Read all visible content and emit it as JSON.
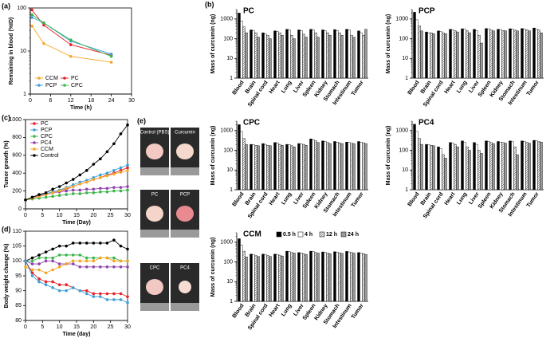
{
  "chart_data": [
    {
      "type": "line",
      "panel_label": "(a)",
      "xlabel": "Time (h)",
      "ylabel": "Remaining in blood (%ID)",
      "log_y": true,
      "x": [
        0.5,
        4,
        12,
        24
      ],
      "xlim": [
        0,
        30
      ],
      "xticks": [
        0,
        6,
        12,
        18,
        24,
        30
      ],
      "ylim": [
        1,
        100
      ],
      "yticks": [
        1,
        10,
        100
      ],
      "legend": "lower left",
      "series": [
        {
          "name": "CCM",
          "color": "#f5a623",
          "values": [
            38,
            15,
            7.5,
            5.5
          ]
        },
        {
          "name": "PC",
          "color": "#e8202a",
          "values": [
            90,
            40,
            14,
            8
          ]
        },
        {
          "name": "PCP",
          "color": "#3aa0d8",
          "values": [
            60,
            45,
            17,
            8.5
          ]
        },
        {
          "name": "CPC",
          "color": "#3cb54a",
          "values": [
            70,
            45,
            18,
            7.5
          ]
        }
      ]
    },
    {
      "type": "bar",
      "panel_label": "(b)",
      "title": "PC",
      "ylabel": "Mass of curcumin (ng)",
      "log_y": true,
      "ylim": [
        1,
        3000
      ],
      "yticks": [
        1,
        10,
        100,
        1000
      ],
      "categories": [
        "Blood",
        "Brain",
        "Spinal cord",
        "Heart",
        "Lung",
        "Liver",
        "Spleen",
        "Kidney",
        "Stomach",
        "Intestinum",
        "Tumor"
      ],
      "series": [
        {
          "color": "#000000",
          "values": [
            2000,
            280,
            200,
            250,
            300,
            280,
            300,
            280,
            290,
            300,
            250
          ]
        },
        {
          "color": "#ffffff",
          "values": [
            800,
            250,
            170,
            230,
            280,
            260,
            280,
            250,
            260,
            280,
            200
          ]
        },
        {
          "color": "#ffffff",
          "hatch": true,
          "values": [
            400,
            200,
            150,
            200,
            150,
            170,
            200,
            200,
            200,
            150,
            150
          ]
        },
        {
          "color": "#999999",
          "values": [
            200,
            120,
            100,
            150,
            100,
            120,
            120,
            150,
            150,
            120,
            300
          ]
        }
      ]
    },
    {
      "type": "bar",
      "title": "PCP",
      "ylabel": "Mass of curcumin (ng)",
      "log_y": true,
      "ylim": [
        1,
        3000
      ],
      "yticks": [
        1,
        10,
        100,
        1000
      ],
      "categories": [
        "Blood",
        "Brain",
        "Spinal cord",
        "Heart",
        "Lung",
        "Liver",
        "Spleen",
        "Kidney",
        "Stomach",
        "Intestinum",
        "Tumor"
      ],
      "series": [
        {
          "color": "#000000",
          "values": [
            2200,
            220,
            250,
            300,
            320,
            300,
            330,
            300,
            320,
            330,
            350
          ]
        },
        {
          "color": "#ffffff",
          "values": [
            900,
            200,
            230,
            280,
            300,
            250,
            320,
            290,
            300,
            300,
            300
          ]
        },
        {
          "color": "#ffffff",
          "hatch": true,
          "values": [
            450,
            200,
            200,
            250,
            250,
            150,
            280,
            260,
            270,
            280,
            280
          ]
        },
        {
          "color": "#999999",
          "values": [
            250,
            180,
            180,
            220,
            200,
            60,
            250,
            250,
            250,
            250,
            200
          ]
        }
      ]
    },
    {
      "type": "bar",
      "title": "CPC",
      "ylabel": "Mass of curcumin (ng)",
      "log_y": true,
      "ylim": [
        1,
        3000
      ],
      "yticks": [
        1,
        10,
        100,
        1000
      ],
      "categories": [
        "Blood",
        "Brain",
        "Spinal cord",
        "Heart",
        "Lung",
        "Liver",
        "Spleen",
        "Kidney",
        "Stomach",
        "Intestinum",
        "Tumor"
      ],
      "series": [
        {
          "color": "#000000",
          "values": [
            2000,
            200,
            220,
            250,
            200,
            220,
            380,
            300,
            280,
            260,
            280
          ]
        },
        {
          "color": "#ffffff",
          "values": [
            900,
            190,
            200,
            230,
            190,
            210,
            350,
            280,
            260,
            250,
            260
          ]
        },
        {
          "color": "#ffffff",
          "hatch": true,
          "values": [
            400,
            180,
            180,
            200,
            170,
            200,
            300,
            250,
            240,
            230,
            240
          ]
        },
        {
          "color": "#999999",
          "values": [
            200,
            170,
            170,
            180,
            150,
            180,
            250,
            220,
            220,
            220,
            220
          ]
        }
      ]
    },
    {
      "type": "bar",
      "title": "PC4",
      "ylabel": "Mass of curcumin (ng)",
      "log_y": true,
      "ylim": [
        1,
        3000
      ],
      "yticks": [
        1,
        10,
        100,
        1000
      ],
      "categories": [
        "Blood",
        "Brain",
        "Spinal cord",
        "Heart",
        "Lung",
        "Liver",
        "Spleen",
        "Kidney",
        "Stomach",
        "Intestinum",
        "Tumor"
      ],
      "series": [
        {
          "color": "#000000",
          "values": [
            2100,
            200,
            150,
            250,
            300,
            250,
            300,
            280,
            300,
            300,
            320
          ]
        },
        {
          "color": "#ffffff",
          "values": [
            900,
            190,
            120,
            230,
            250,
            200,
            280,
            260,
            270,
            280,
            300
          ]
        },
        {
          "color": "#ffffff",
          "hatch": true,
          "values": [
            400,
            180,
            60,
            200,
            150,
            100,
            250,
            250,
            150,
            250,
            280
          ]
        },
        {
          "color": "#999999",
          "values": [
            200,
            170,
            40,
            150,
            100,
            70,
            220,
            230,
            60,
            230,
            260
          ]
        }
      ]
    },
    {
      "type": "bar",
      "title": "CCM",
      "ylabel": "Mass of curcumin (ng)",
      "log_y": true,
      "ylim": [
        1,
        3000
      ],
      "yticks": [
        1,
        10,
        100,
        1000
      ],
      "legend": "top right",
      "categories": [
        "Blood",
        "Brain",
        "Spinal cord",
        "Heart",
        "Lung",
        "Liver",
        "Spleen",
        "Kidney",
        "Stomach",
        "Intestinum",
        "Tumor"
      ],
      "series": [
        {
          "name": "0.5 h",
          "color": "#000000",
          "values": [
            1500,
            250,
            250,
            250,
            350,
            300,
            350,
            320,
            330,
            340,
            300
          ]
        },
        {
          "name": "4 h",
          "color": "#ffffff",
          "values": [
            700,
            230,
            230,
            240,
            330,
            280,
            330,
            300,
            310,
            320,
            280
          ]
        },
        {
          "name": "12 h",
          "color": "#ffffff",
          "hatch": true,
          "values": [
            350,
            210,
            210,
            220,
            300,
            260,
            300,
            280,
            290,
            300,
            260
          ]
        },
        {
          "name": "24 h",
          "color": "#999999",
          "values": [
            180,
            190,
            190,
            200,
            280,
            240,
            280,
            260,
            270,
            280,
            240
          ]
        }
      ]
    },
    {
      "type": "line",
      "panel_label": "(c)",
      "xlabel": "Time (Day)",
      "ylabel": "Tumor growth (%)",
      "x": [
        0,
        2,
        4,
        6,
        8,
        10,
        12,
        14,
        16,
        18,
        20,
        22,
        24,
        26,
        28,
        30
      ],
      "xlim": [
        0,
        30
      ],
      "xticks": [
        0,
        5,
        10,
        15,
        20,
        25,
        30
      ],
      "ylim": [
        0,
        1000
      ],
      "yticks": [
        0,
        200,
        400,
        600,
        800,
        1000
      ],
      "legend": "top left",
      "series": [
        {
          "name": "PC",
          "color": "#e8202a",
          "values": [
            100,
            120,
            140,
            160,
            180,
            200,
            220,
            250,
            280,
            300,
            330,
            350,
            380,
            400,
            430,
            460
          ]
        },
        {
          "name": "PCP",
          "color": "#3aa0d8",
          "values": [
            100,
            130,
            150,
            170,
            190,
            210,
            240,
            270,
            300,
            320,
            350,
            380,
            400,
            430,
            460,
            490
          ]
        },
        {
          "name": "CPC",
          "color": "#3cb54a",
          "values": [
            100,
            110,
            120,
            130,
            140,
            150,
            160,
            170,
            170,
            180,
            180,
            190,
            190,
            200,
            200,
            210
          ]
        },
        {
          "name": "PC4",
          "color": "#8e44ad",
          "values": [
            100,
            130,
            150,
            160,
            180,
            190,
            200,
            210,
            210,
            220,
            220,
            230,
            230,
            240,
            240,
            250
          ]
        },
        {
          "name": "CCM",
          "color": "#f5a623",
          "values": [
            100,
            120,
            140,
            160,
            180,
            200,
            230,
            250,
            280,
            300,
            330,
            350,
            370,
            390,
            410,
            430
          ]
        },
        {
          "name": "Control",
          "color": "#000000",
          "values": [
            100,
            130,
            160,
            180,
            220,
            250,
            290,
            330,
            380,
            430,
            500,
            560,
            640,
            730,
            840,
            940
          ]
        }
      ]
    },
    {
      "type": "line",
      "panel_label": "(d)",
      "xlabel": "Time (day)",
      "ylabel": "Body weight change (%)",
      "x": [
        0,
        2,
        4,
        6,
        8,
        10,
        12,
        14,
        16,
        18,
        20,
        22,
        24,
        26,
        28,
        30
      ],
      "xlim": [
        0,
        30
      ],
      "xticks": [
        0,
        5,
        10,
        15,
        20,
        25,
        30
      ],
      "ylim": [
        80,
        110
      ],
      "yticks": [
        80,
        85,
        90,
        95,
        100,
        105,
        110
      ],
      "series": [
        {
          "color": "#000000",
          "values": [
            100,
            101,
            102,
            103,
            104,
            105,
            105,
            106,
            106,
            106,
            106,
            106,
            106,
            107,
            105,
            104
          ]
        },
        {
          "color": "#8e44ad",
          "values": [
            100,
            99,
            99,
            100,
            100,
            99,
            99,
            99,
            98,
            98,
            98,
            98,
            98,
            98,
            98,
            98
          ]
        },
        {
          "color": "#3cb54a",
          "values": [
            100,
            100,
            101,
            101,
            101,
            102,
            102,
            102,
            102,
            101,
            101,
            101,
            101,
            101,
            100,
            100
          ]
        },
        {
          "color": "#f5a623",
          "values": [
            98,
            97,
            97,
            96,
            97,
            98,
            99,
            100,
            100,
            100,
            100,
            101,
            101,
            100,
            100,
            100
          ]
        },
        {
          "color": "#e8202a",
          "values": [
            100,
            96,
            94,
            93,
            93,
            92,
            92,
            91,
            90,
            90,
            89,
            89,
            89,
            89,
            89,
            88
          ]
        },
        {
          "color": "#3aa0d8",
          "values": [
            100,
            95,
            93,
            92,
            91,
            90,
            90,
            91,
            90,
            89,
            88,
            88,
            87,
            87,
            87,
            86
          ]
        }
      ]
    }
  ],
  "photo_panel": {
    "panel_label": "(e)",
    "captions": [
      "Control (PBS)",
      "Curcumin",
      "PC",
      "PCP",
      "CPC",
      "PC4"
    ]
  }
}
